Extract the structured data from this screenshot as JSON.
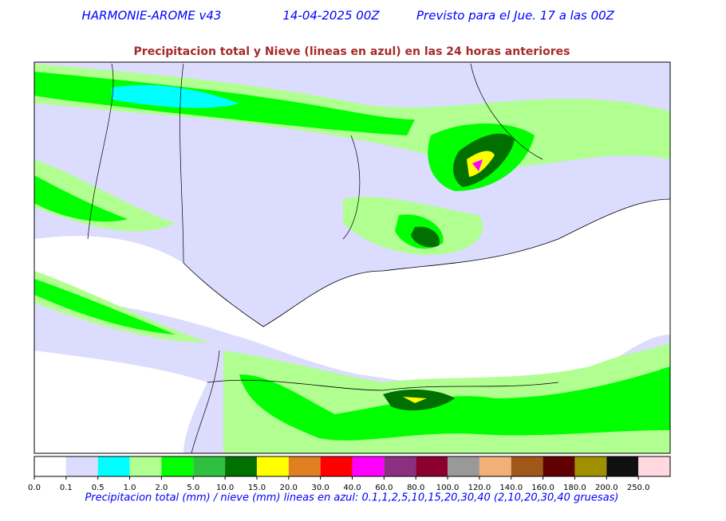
{
  "header": {
    "model": "HARMONIE-AROME v43",
    "run": "14-04-2025 00Z",
    "forecast": "Previsto para el Jue. 17 a las 00Z"
  },
  "subtitle": "Precipitacion total y Nieve (lineas en azul) en las 24 horas anteriores",
  "colorbar": {
    "colors": [
      "#ffffff",
      "#dcdcff",
      "#00ffff",
      "#b0ff90",
      "#00ff00",
      "#30c040",
      "#007000",
      "#ffff00",
      "#e08020",
      "#ff0000",
      "#ff00ff",
      "#8b3080",
      "#8b0030",
      "#999999",
      "#f0b078",
      "#a05818",
      "#600000",
      "#a09000",
      "#101010",
      "#ffd8e0"
    ],
    "labels": [
      "0.0",
      "0.1",
      "0.5",
      "1.0",
      "2.0",
      "5.0",
      "10.0",
      "15.0",
      "20.0",
      "30.0",
      "40.0",
      "60.0",
      "80.0",
      "100.0",
      "120.0",
      "140.0",
      "160.0",
      "180.0",
      "200.0",
      "250.0"
    ]
  },
  "caption": "Precipitacion total (mm) / nieve (mm) lineas en azul: 0.1,1,2,5,10,15,20,30,40  (2,10,20,30,40 gruesas)"
}
